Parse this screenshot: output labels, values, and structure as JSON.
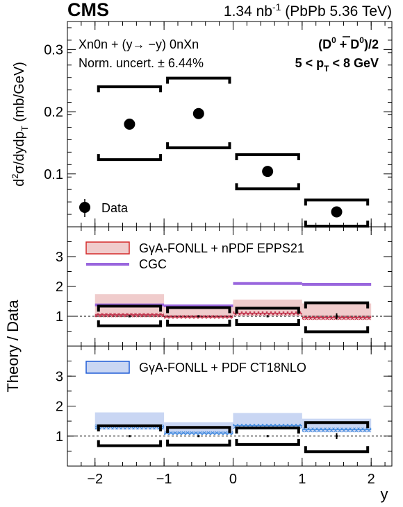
{
  "header": {
    "experiment": "CMS",
    "lumi_value": "1.34 nb",
    "lumi_exp": "-1",
    "lumi_rest": " (PbPb 5.36 TeV)"
  },
  "annotations": {
    "selection": "Xn0n + (y→ −y) 0nXn",
    "norm_uncert": "Norm. uncert. ± 6.44%",
    "species_pre": "(D",
    "species_sup0": "0",
    "species_plus": " + ",
    "species_dbar": "D",
    "species_sup1": "0",
    "species_post": ")/2",
    "pt_range_pre": "5 < p",
    "pt_range_sub": "T",
    "pt_range_post": " < 8 GeV"
  },
  "axes": {
    "top_ylabel_a": "d",
    "top_ylabel_sup": "2",
    "top_ylabel_b": "σ/dydp",
    "top_ylabel_sub": "T",
    "top_ylabel_c": " (mb/GeV)",
    "ratio_ylabel": "Theory / Data",
    "xlabel": "y"
  },
  "colors": {
    "epps21_fill": "#f0cccc",
    "epps21_line": "#d42a2a",
    "epps21_hatch": "#c0304a",
    "cgc": "#9966dd",
    "ct18_fill": "#c9d6f3",
    "ct18_line": "#1f5bd6",
    "ct18_hatch": "#4a8fe0",
    "data": "#000000"
  },
  "chart_data": [
    {
      "type": "scatter",
      "panel": "top",
      "x_bins": [
        [
          -2,
          -1
        ],
        [
          -1,
          0
        ],
        [
          0,
          1
        ],
        [
          1,
          2
        ]
      ],
      "x": [
        -1.5,
        -0.5,
        0.5,
        1.5
      ],
      "y": [
        0.18,
        0.197,
        0.104,
        0.039
      ],
      "stat_err": [
        0.004,
        0.004,
        0.003,
        0.003
      ],
      "syst_low": [
        0.123,
        0.142,
        0.076,
        0.016
      ],
      "syst_high": [
        0.24,
        0.254,
        0.131,
        0.058
      ],
      "series_legend": "Data",
      "ylim": [
        0.015,
        0.345
      ],
      "yticks": [
        0.1,
        0.2,
        0.3
      ],
      "ytick_labels": [
        "0.1",
        "0.2",
        "0.3"
      ],
      "xlim": [
        -2.4,
        2.3
      ]
    },
    {
      "type": "line",
      "panel": "ratio1",
      "ylim": [
        0,
        4
      ],
      "yticks": [
        1,
        2,
        3
      ],
      "ytick_labels": [
        "1",
        "2",
        "3"
      ],
      "series": [
        {
          "name": "GγA-FONLL + nPDF EPPS21",
          "central": [
            1.05,
            0.98,
            1.1,
            0.96
          ],
          "low": [
            0.97,
            0.93,
            1.03,
            0.88
          ],
          "high": [
            1.74,
            1.32,
            1.56,
            1.43
          ]
        },
        {
          "name": "CGC",
          "values": [
            1.38,
            1.35,
            2.1,
            2.07
          ]
        }
      ],
      "data_ratio": [
        1.0,
        1.0,
        1.0,
        1.0
      ],
      "data_stat": [
        0.03,
        0.03,
        0.03,
        0.1
      ],
      "data_syst_low": [
        0.68,
        0.7,
        0.72,
        0.48
      ],
      "data_syst_high": [
        1.34,
        1.29,
        1.27,
        1.45
      ]
    },
    {
      "type": "line",
      "panel": "ratio2",
      "ylim": [
        0,
        4
      ],
      "yticks": [
        1,
        2,
        3
      ],
      "ytick_labels": [
        "1",
        "2",
        "3"
      ],
      "xticks": [
        -2,
        -1,
        0,
        1,
        2
      ],
      "xtick_labels": [
        "−2",
        "−1",
        "0",
        "1",
        "2"
      ],
      "series": [
        {
          "name": "GγA-FONLL + PDF CT18NLO",
          "central": [
            1.32,
            1.1,
            1.35,
            1.22
          ],
          "low": [
            1.22,
            1.06,
            1.25,
            1.13
          ],
          "high": [
            1.79,
            1.46,
            1.77,
            1.58
          ]
        }
      ],
      "data_ratio": [
        1.0,
        1.0,
        1.0,
        1.0
      ],
      "data_stat": [
        0.03,
        0.03,
        0.03,
        0.1
      ],
      "data_syst_low": [
        0.68,
        0.7,
        0.72,
        0.48
      ],
      "data_syst_high": [
        1.34,
        1.29,
        1.27,
        1.45
      ]
    }
  ]
}
